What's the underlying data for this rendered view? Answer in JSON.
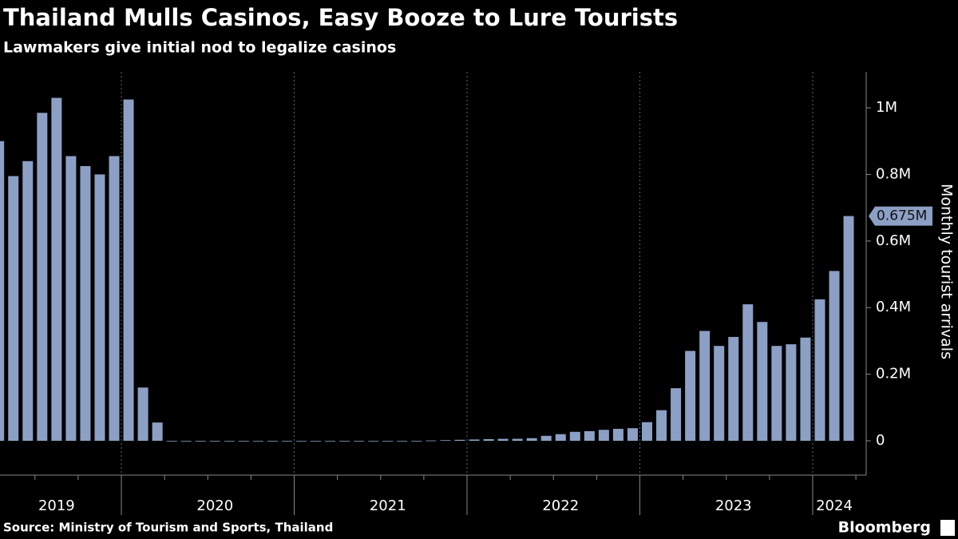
{
  "chart_data": {
    "type": "bar",
    "title": "Thailand Mulls Casinos, Easy Booze to Lure Tourists",
    "subtitle": "Lawmakers give initial nod to legalize casinos",
    "y_label": "Monthly tourist arrivals",
    "source": "Source: Ministry of Tourism and Sports, Thailand",
    "brand": "Bloomberg",
    "color": "#8c9fc4",
    "categories": [
      null,
      null,
      null,
      null,
      "2019",
      null,
      null,
      null,
      null,
      null,
      null,
      null,
      null,
      null,
      null,
      "2020",
      null,
      null,
      null,
      null,
      null,
      null,
      null,
      null,
      null,
      null,
      null,
      "2021",
      null,
      null,
      null,
      null,
      null,
      null,
      null,
      null,
      null,
      null,
      null,
      "2022",
      null,
      null,
      null,
      null,
      null,
      null,
      null,
      null,
      null,
      null,
      null,
      "2023",
      null,
      null,
      null,
      null,
      null,
      null,
      "2024",
      null
    ],
    "values": [
      900000,
      795000,
      840000,
      985000,
      1030000,
      855000,
      825000,
      800000,
      855000,
      1025000,
      160000,
      55000,
      0,
      0,
      0,
      0,
      0,
      0,
      0,
      0,
      0,
      0,
      0,
      0,
      0,
      0,
      0,
      0,
      0,
      0,
      1000,
      2000,
      3000,
      4000,
      5000,
      6000,
      6000,
      8000,
      15000,
      20000,
      27000,
      29000,
      33000,
      36000,
      38000,
      56000,
      92000,
      158000,
      270000,
      330000,
      285000,
      312000,
      410000,
      357000,
      285000,
      290000,
      310000,
      425000,
      510000,
      675000
    ],
    "value_labels": [
      null,
      null,
      null,
      null,
      null,
      null,
      null,
      null,
      null,
      null,
      null,
      null,
      null,
      null,
      null,
      null,
      null,
      null,
      null,
      null,
      null,
      null,
      null,
      null,
      null,
      null,
      null,
      null,
      null,
      null,
      null,
      null,
      null,
      null,
      null,
      null,
      null,
      null,
      null,
      null,
      null,
      null,
      null,
      null,
      null,
      null,
      null,
      null,
      null,
      null,
      null,
      null,
      null,
      null,
      null,
      null,
      null,
      null,
      null,
      "0.675M"
    ],
    "ylim": [
      -103000,
      1108000
    ],
    "yticks": [
      {
        "value": 0,
        "label": "0"
      },
      {
        "value": 200000,
        "label": "0.2M"
      },
      {
        "value": 400000,
        "label": "0.4M"
      },
      {
        "value": 600000,
        "label": "0.6M"
      },
      {
        "value": 800000,
        "label": "0.8M"
      },
      {
        "value": 1000000,
        "label": "1M"
      }
    ]
  }
}
